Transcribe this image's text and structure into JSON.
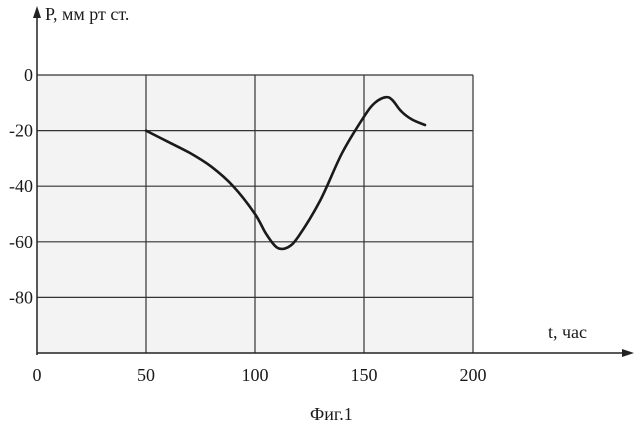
{
  "chart_data": {
    "type": "line",
    "title": "",
    "ylabel": "P, мм рт ст.",
    "xlabel": "t, час",
    "caption": "Фиг.1",
    "xlim": [
      0,
      200
    ],
    "ylim": [
      -100,
      0
    ],
    "x_ticks": [
      0,
      50,
      100,
      150,
      200
    ],
    "y_ticks": [
      0,
      -20,
      -40,
      -60,
      -80
    ],
    "grid": true,
    "series": [
      {
        "x": [
          50,
          60,
          70,
          80,
          90,
          100,
          105,
          110,
          115,
          120,
          130,
          140,
          150,
          155,
          160,
          163,
          167,
          172,
          178
        ],
        "values": [
          -20,
          -24,
          -28,
          -33,
          -40,
          -50,
          -57,
          -62,
          -62,
          -58,
          -45,
          -28,
          -15,
          -10,
          -8,
          -9,
          -13,
          -16,
          -18
        ]
      }
    ]
  }
}
